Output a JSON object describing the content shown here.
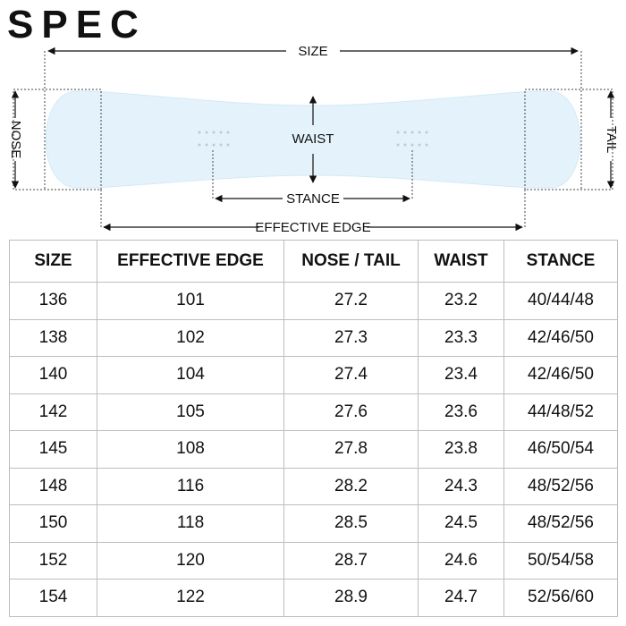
{
  "header": {
    "title": "SPEC"
  },
  "diagram": {
    "size": "SIZE",
    "waist": "WAIST",
    "stance": "STANCE",
    "effective_edge": "EFFECTIVE EDGE",
    "nose": "NOSE",
    "tail": "TAIL"
  },
  "table": {
    "columns": [
      "SIZE",
      "EFFECTIVE EDGE",
      "NOSE / TAIL",
      "WAIST",
      "STANCE"
    ],
    "rows": [
      [
        "136",
        "101",
        "27.2",
        "23.2",
        "40/44/48"
      ],
      [
        "138",
        "102",
        "27.3",
        "23.3",
        "42/46/50"
      ],
      [
        "140",
        "104",
        "27.4",
        "23.4",
        "42/46/50"
      ],
      [
        "142",
        "105",
        "27.6",
        "23.6",
        "44/48/52"
      ],
      [
        "145",
        "108",
        "27.8",
        "23.8",
        "46/50/54"
      ],
      [
        "148",
        "116",
        "28.2",
        "24.3",
        "48/52/56"
      ],
      [
        "150",
        "118",
        "28.5",
        "24.5",
        "48/52/56"
      ],
      [
        "152",
        "120",
        "28.7",
        "24.6",
        "50/54/58"
      ],
      [
        "154",
        "122",
        "28.9",
        "24.7",
        "52/56/60"
      ]
    ]
  }
}
